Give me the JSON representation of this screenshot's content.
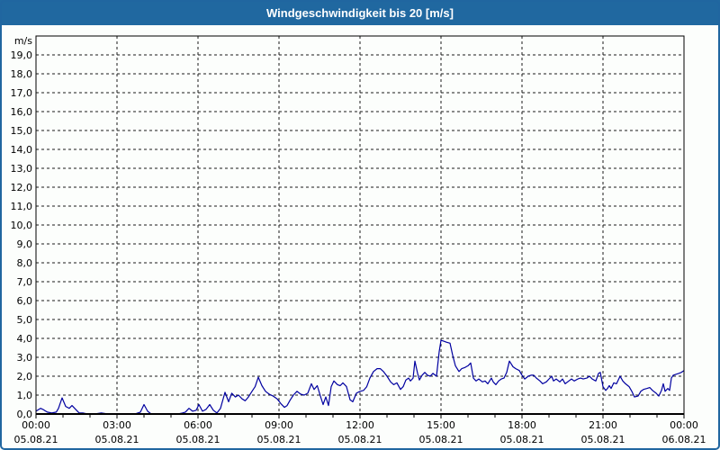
{
  "window": {
    "title": "Windgeschwindigkeit bis 20 [m/s]"
  },
  "colors": {
    "titlebar_bg": "#2068a0",
    "frame_border": "#2066a0",
    "chart_bg": "#fcfefc",
    "grid": "#1a1a1a",
    "axis": "#000000",
    "series": "#0000a0",
    "label": "#000000",
    "title_text": "#ffffff"
  },
  "chart_data": {
    "type": "line",
    "title": "Windgeschwindigkeit bis 20 [m/s]",
    "unit_label": "m/s",
    "ylim": [
      0,
      20
    ],
    "y_tick_step": 1,
    "y_tick_labels": [
      "0,0",
      "1,0",
      "2,0",
      "3,0",
      "4,0",
      "5,0",
      "6,0",
      "7,0",
      "8,0",
      "9,0",
      "10,0",
      "11,0",
      "12,0",
      "13,0",
      "14,0",
      "15,0",
      "16,0",
      "17,0",
      "18,0",
      "19,0"
    ],
    "x_range_minutes": [
      0,
      1440
    ],
    "x_minor_tick_minutes": 60,
    "grid_style": "dashed",
    "x_major_ticks": [
      {
        "minute": 0,
        "time": "00:00",
        "date": "05.08.21"
      },
      {
        "minute": 180,
        "time": "03:00",
        "date": "05.08.21"
      },
      {
        "minute": 360,
        "time": "06:00",
        "date": "05.08.21"
      },
      {
        "minute": 540,
        "time": "09:00",
        "date": "05.08.21"
      },
      {
        "minute": 720,
        "time": "12:00",
        "date": "05.08.21"
      },
      {
        "minute": 900,
        "time": "15:00",
        "date": "05.08.21"
      },
      {
        "minute": 1080,
        "time": "18:00",
        "date": "05.08.21"
      },
      {
        "minute": 1260,
        "time": "21:00",
        "date": "05.08.21"
      },
      {
        "minute": 1440,
        "time": "00:00",
        "date": "06.08.21"
      }
    ],
    "series": [
      {
        "name": "Windgeschwindigkeit",
        "color": "#0000a0",
        "points": [
          [
            0,
            0.15
          ],
          [
            10,
            0.3
          ],
          [
            15,
            0.25
          ],
          [
            25,
            0.1
          ],
          [
            35,
            0.05
          ],
          [
            45,
            0.1
          ],
          [
            50,
            0.3
          ],
          [
            58,
            0.85
          ],
          [
            66,
            0.4
          ],
          [
            74,
            0.3
          ],
          [
            80,
            0.45
          ],
          [
            88,
            0.25
          ],
          [
            96,
            0.05
          ],
          [
            105,
            0.05
          ],
          [
            115,
            0
          ],
          [
            130,
            0
          ],
          [
            145,
            0.05
          ],
          [
            160,
            0
          ],
          [
            175,
            0
          ],
          [
            190,
            0
          ],
          [
            205,
            0
          ],
          [
            220,
            0
          ],
          [
            232,
            0.1
          ],
          [
            240,
            0.5
          ],
          [
            248,
            0.15
          ],
          [
            256,
            0
          ],
          [
            270,
            0
          ],
          [
            285,
            0
          ],
          [
            300,
            0
          ],
          [
            315,
            0
          ],
          [
            325,
            0.05
          ],
          [
            332,
            0.1
          ],
          [
            340,
            0.3
          ],
          [
            348,
            0.15
          ],
          [
            356,
            0.2
          ],
          [
            362,
            0.5
          ],
          [
            370,
            0.15
          ],
          [
            378,
            0.25
          ],
          [
            386,
            0.5
          ],
          [
            394,
            0.2
          ],
          [
            402,
            0.05
          ],
          [
            410,
            0.3
          ],
          [
            420,
            1.15
          ],
          [
            428,
            0.65
          ],
          [
            435,
            1.1
          ],
          [
            443,
            0.9
          ],
          [
            450,
            1.0
          ],
          [
            458,
            0.8
          ],
          [
            465,
            0.7
          ],
          [
            472,
            0.9
          ],
          [
            480,
            1.2
          ],
          [
            487,
            1.45
          ],
          [
            494,
            1.95
          ],
          [
            502,
            1.5
          ],
          [
            510,
            1.2
          ],
          [
            518,
            1.05
          ],
          [
            527,
            0.95
          ],
          [
            536,
            0.8
          ],
          [
            544,
            0.55
          ],
          [
            552,
            0.35
          ],
          [
            558,
            0.45
          ],
          [
            565,
            0.75
          ],
          [
            572,
            1.0
          ],
          [
            580,
            1.2
          ],
          [
            588,
            1.05
          ],
          [
            596,
            1.0
          ],
          [
            604,
            1.1
          ],
          [
            612,
            1.6
          ],
          [
            618,
            1.3
          ],
          [
            625,
            1.5
          ],
          [
            632,
            0.95
          ],
          [
            638,
            0.5
          ],
          [
            644,
            0.9
          ],
          [
            650,
            0.45
          ],
          [
            656,
            1.45
          ],
          [
            662,
            1.75
          ],
          [
            670,
            1.55
          ],
          [
            676,
            1.5
          ],
          [
            682,
            1.65
          ],
          [
            690,
            1.45
          ],
          [
            698,
            0.75
          ],
          [
            704,
            0.65
          ],
          [
            712,
            1.1
          ],
          [
            720,
            1.2
          ],
          [
            728,
            1.25
          ],
          [
            735,
            1.45
          ],
          [
            742,
            1.9
          ],
          [
            750,
            2.25
          ],
          [
            758,
            2.4
          ],
          [
            765,
            2.4
          ],
          [
            772,
            2.25
          ],
          [
            780,
            2.0
          ],
          [
            788,
            1.7
          ],
          [
            795,
            1.55
          ],
          [
            802,
            1.65
          ],
          [
            810,
            1.3
          ],
          [
            816,
            1.45
          ],
          [
            822,
            1.8
          ],
          [
            828,
            1.9
          ],
          [
            832,
            1.75
          ],
          [
            838,
            1.9
          ],
          [
            842,
            2.8
          ],
          [
            848,
            2.15
          ],
          [
            852,
            1.8
          ],
          [
            858,
            2.05
          ],
          [
            864,
            2.2
          ],
          [
            870,
            2.05
          ],
          [
            876,
            2.0
          ],
          [
            882,
            2.15
          ],
          [
            890,
            2.0
          ],
          [
            896,
            3.3
          ],
          [
            900,
            3.9
          ],
          [
            906,
            3.85
          ],
          [
            912,
            3.8
          ],
          [
            920,
            3.75
          ],
          [
            926,
            3.1
          ],
          [
            932,
            2.55
          ],
          [
            940,
            2.25
          ],
          [
            946,
            2.4
          ],
          [
            952,
            2.45
          ],
          [
            960,
            2.55
          ],
          [
            966,
            2.7
          ],
          [
            972,
            1.9
          ],
          [
            978,
            1.75
          ],
          [
            984,
            1.85
          ],
          [
            992,
            1.7
          ],
          [
            998,
            1.75
          ],
          [
            1004,
            1.6
          ],
          [
            1012,
            1.9
          ],
          [
            1016,
            1.7
          ],
          [
            1022,
            1.55
          ],
          [
            1028,
            1.75
          ],
          [
            1034,
            1.85
          ],
          [
            1040,
            1.9
          ],
          [
            1046,
            2.2
          ],
          [
            1052,
            2.8
          ],
          [
            1060,
            2.5
          ],
          [
            1066,
            2.4
          ],
          [
            1074,
            2.3
          ],
          [
            1080,
            2.05
          ],
          [
            1086,
            1.85
          ],
          [
            1094,
            2.0
          ],
          [
            1100,
            2.05
          ],
          [
            1106,
            2.05
          ],
          [
            1112,
            1.9
          ],
          [
            1120,
            1.75
          ],
          [
            1126,
            1.6
          ],
          [
            1134,
            1.7
          ],
          [
            1140,
            1.85
          ],
          [
            1146,
            2.0
          ],
          [
            1150,
            1.75
          ],
          [
            1156,
            1.85
          ],
          [
            1164,
            1.7
          ],
          [
            1170,
            1.85
          ],
          [
            1176,
            1.6
          ],
          [
            1184,
            1.75
          ],
          [
            1190,
            1.85
          ],
          [
            1196,
            1.75
          ],
          [
            1204,
            1.85
          ],
          [
            1210,
            1.9
          ],
          [
            1216,
            1.85
          ],
          [
            1224,
            1.9
          ],
          [
            1230,
            2.0
          ],
          [
            1236,
            1.85
          ],
          [
            1244,
            1.75
          ],
          [
            1250,
            2.15
          ],
          [
            1254,
            2.2
          ],
          [
            1260,
            1.45
          ],
          [
            1266,
            1.25
          ],
          [
            1270,
            1.35
          ],
          [
            1274,
            1.5
          ],
          [
            1278,
            1.35
          ],
          [
            1284,
            1.65
          ],
          [
            1290,
            1.6
          ],
          [
            1298,
            2.0
          ],
          [
            1304,
            1.75
          ],
          [
            1310,
            1.6
          ],
          [
            1318,
            1.45
          ],
          [
            1324,
            1.2
          ],
          [
            1330,
            0.9
          ],
          [
            1338,
            0.95
          ],
          [
            1344,
            1.2
          ],
          [
            1350,
            1.3
          ],
          [
            1358,
            1.35
          ],
          [
            1364,
            1.4
          ],
          [
            1370,
            1.25
          ],
          [
            1378,
            1.1
          ],
          [
            1384,
            0.95
          ],
          [
            1390,
            1.25
          ],
          [
            1394,
            1.6
          ],
          [
            1398,
            1.2
          ],
          [
            1404,
            1.35
          ],
          [
            1408,
            1.25
          ],
          [
            1412,
            1.9
          ],
          [
            1416,
            2.05
          ],
          [
            1422,
            2.1
          ],
          [
            1428,
            2.15
          ],
          [
            1434,
            2.2
          ],
          [
            1440,
            2.3
          ]
        ]
      }
    ]
  }
}
